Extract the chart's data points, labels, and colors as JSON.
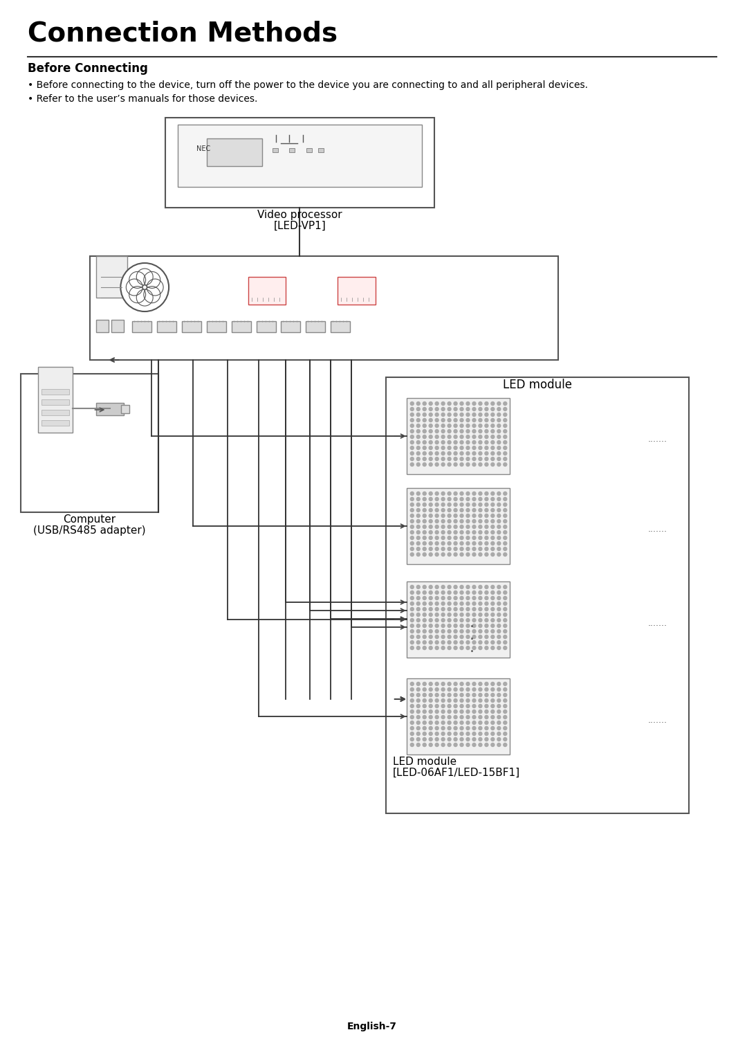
{
  "title": "Connection Methods",
  "subtitle": "Before Connecting",
  "bullet1": "Before connecting to the device, turn off the power to the device you are connecting to and all peripheral devices.",
  "bullet2": "Refer to the user’s manuals for those devices.",
  "vp_label1": "Video processor",
  "vp_label2": "[LED-VP1]",
  "computer_label1": "Computer",
  "computer_label2": "(USB/RS485 adapter)",
  "led_module_top_label": "LED module",
  "led_module_bottom_label1": "LED module",
  "led_module_bottom_label2": "[LED-06AF1/LED-15BF1]",
  "page_label": "English-7",
  "bg_color": "#ffffff",
  "line_color": "#333333",
  "border_color": "#555555",
  "text_color": "#000000",
  "dots_color": "#555555"
}
